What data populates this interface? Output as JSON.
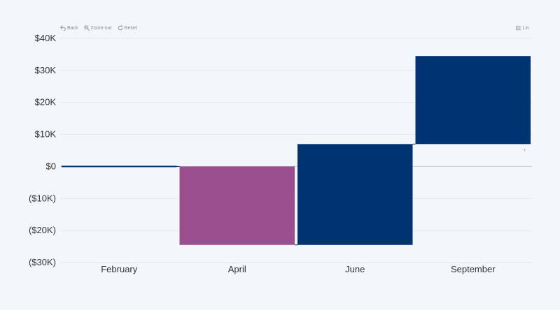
{
  "toolbar": {
    "back_label": "Back",
    "zoom_out_label": "Zoom-out",
    "reset_label": "Reset",
    "view_label": "Lin"
  },
  "colors": {
    "increase": "#003372",
    "decrease": "#9c4f8e",
    "grid": "#e3e7ee",
    "zero_line": "#c8ccd3"
  },
  "chart_data": {
    "type": "bar",
    "subtype": "waterfall",
    "categories": [
      "February",
      "April",
      "June",
      "September"
    ],
    "values": [
      0,
      -24500,
      31500,
      27500
    ],
    "cumulative": [
      0,
      -24500,
      7000,
      34500
    ],
    "ylim": [
      -30000,
      40000
    ],
    "yticks": [
      40000,
      30000,
      20000,
      10000,
      0,
      -10000,
      -20000,
      -30000
    ],
    "ytick_labels": [
      "$40K",
      "$30K",
      "$20K",
      "$10K",
      "$0",
      "($10K)",
      "($20K)",
      "($30K)"
    ],
    "grid": true,
    "title": "",
    "xlabel": "",
    "ylabel": ""
  }
}
